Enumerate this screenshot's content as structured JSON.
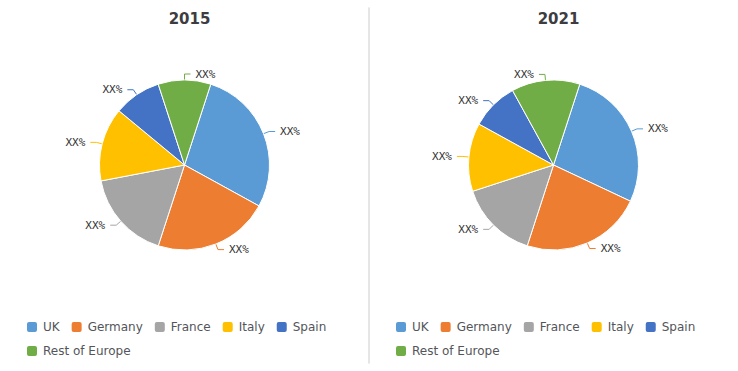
{
  "chart_data": [
    {
      "type": "pie",
      "title": "2015",
      "categories": [
        "UK",
        "Germany",
        "France",
        "Italy",
        "Spain",
        "Rest of Europe"
      ],
      "values": [
        28,
        22,
        17,
        14,
        9,
        10
      ],
      "value_labels": [
        "XX%",
        "XX%",
        "XX%",
        "XX%",
        "XX%",
        "XX%"
      ],
      "data_labels": true,
      "colors": [
        "#5B9BD5",
        "#ED7D31",
        "#A5A5A5",
        "#FFC000",
        "#4472C4",
        "#70AD47"
      ],
      "legend": "bottom"
    },
    {
      "type": "pie",
      "title": "2021",
      "categories": [
        "UK",
        "Germany",
        "France",
        "Italy",
        "Spain",
        "Rest of Europe"
      ],
      "values": [
        27,
        23,
        15,
        13,
        9,
        13
      ],
      "value_labels": [
        "XX%",
        "XX%",
        "XX%",
        "XX%",
        "XX%",
        "XX%"
      ],
      "data_labels": true,
      "colors": [
        "#5B9BD5",
        "#ED7D31",
        "#A5A5A5",
        "#FFC000",
        "#4472C4",
        "#70AD47"
      ],
      "legend": "bottom"
    }
  ]
}
